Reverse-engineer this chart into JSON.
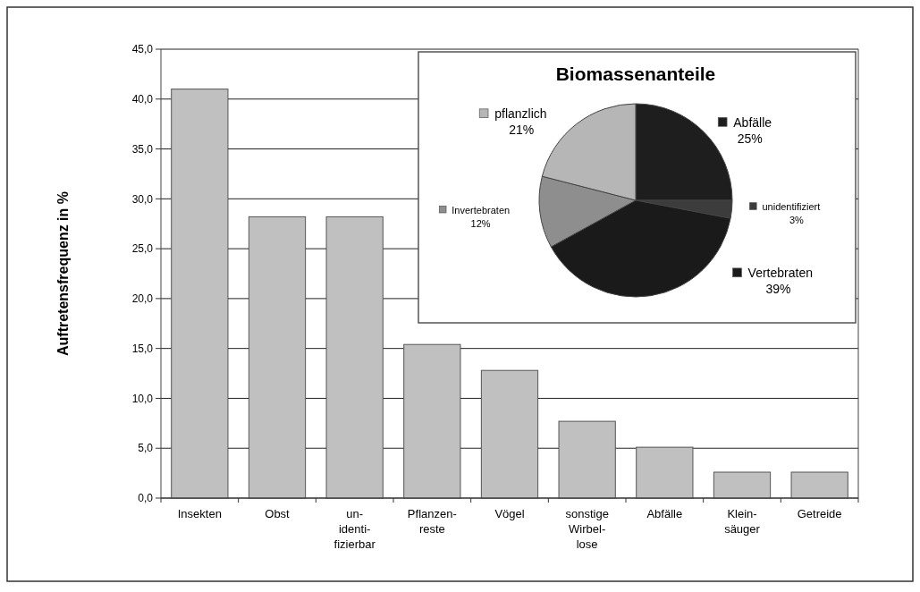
{
  "chart_data": [
    {
      "type": "bar",
      "ylabel": "Auftretensfrequenz in %",
      "categories": [
        "Insekten",
        "Obst",
        "un-\nidenti-\nfizierbar",
        "Pflanzen-\nreste",
        "Vögel",
        "sonstige\nWirbel-\nlose",
        "Abfälle",
        "Klein-\nsäuger",
        "Getreide"
      ],
      "values": [
        41.0,
        28.2,
        28.2,
        15.4,
        12.8,
        7.7,
        5.1,
        2.6,
        2.6
      ],
      "color": "#c0c0c0",
      "ylim": [
        0,
        45
      ],
      "yticks": [
        {
          "value": 0,
          "label": "0,0"
        },
        {
          "value": 5,
          "label": "5,0"
        },
        {
          "value": 10,
          "label": "10,0"
        },
        {
          "value": 15,
          "label": "15,0"
        },
        {
          "value": 20,
          "label": "20,0"
        },
        {
          "value": 25,
          "label": "25,0"
        },
        {
          "value": 30,
          "label": "30,0"
        },
        {
          "value": 35,
          "label": "35,0"
        },
        {
          "value": 40,
          "label": "40,0"
        },
        {
          "value": 45,
          "label": "45,0"
        }
      ],
      "grid": "y"
    },
    {
      "type": "pie",
      "title": "Biomassenanteile",
      "categories": [
        "Abfälle",
        "unidentifiziert",
        "Vertebraten",
        "Invertebraten",
        "pflanzlich"
      ],
      "values": [
        25,
        3,
        39,
        12,
        21
      ],
      "colors": [
        "#1e1e1e",
        "#3c3c3c",
        "#1a1a1a",
        "#8e8e8e",
        "#b6b6b6"
      ],
      "value_labels": [
        "25%",
        "3%",
        "39%",
        "12%",
        "21%"
      ],
      "legend": "right"
    }
  ]
}
